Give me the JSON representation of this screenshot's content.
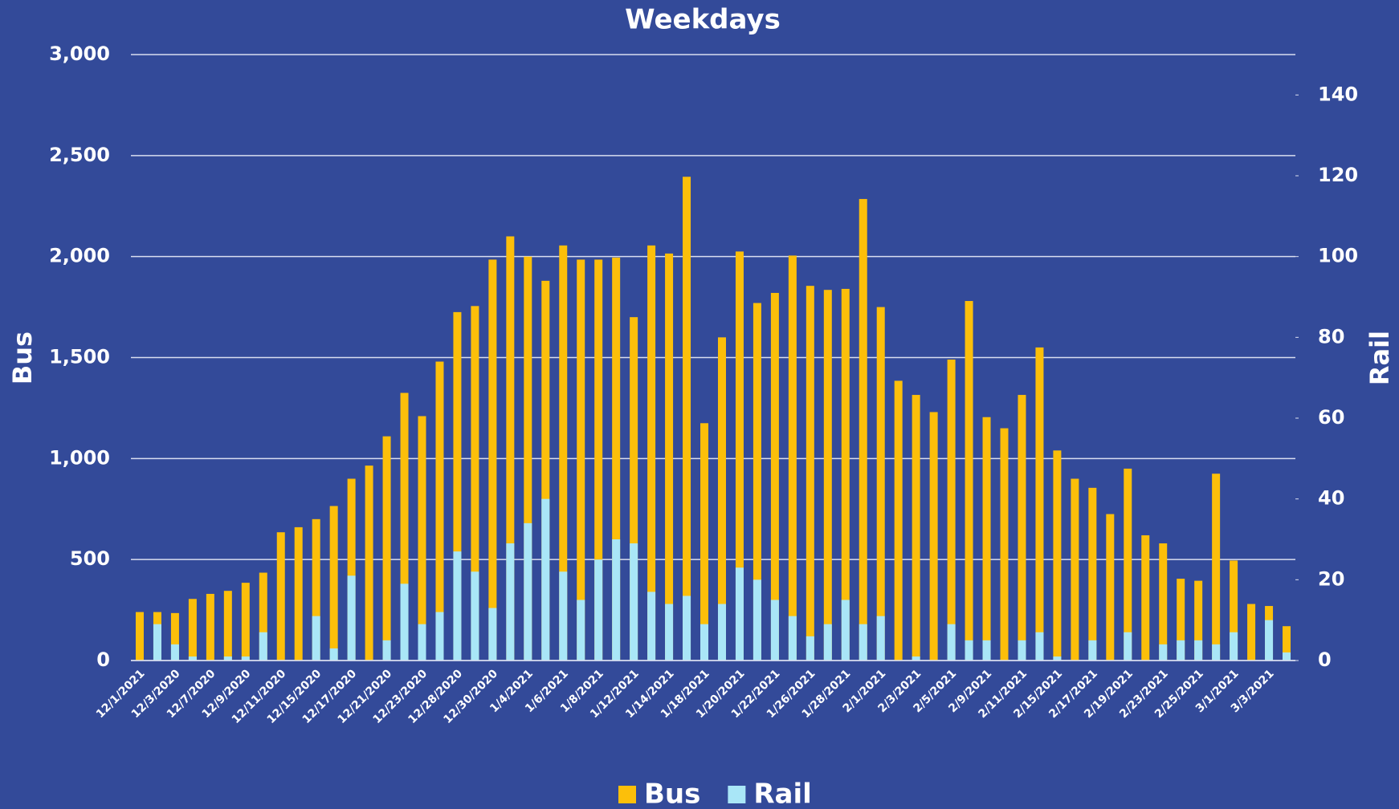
{
  "chart_data": {
    "type": "bar",
    "title": "Weekdays",
    "y_label": "Bus",
    "y2_label": "Rail",
    "categories": [
      "12/1/2021",
      null,
      "12/3/2020",
      null,
      "12/7/2020",
      null,
      "12/9/2020",
      null,
      "12/11/2020",
      null,
      "12/15/2020",
      null,
      "12/17/2020",
      null,
      "12/21/2020",
      null,
      "12/23/2020",
      null,
      "12/28/2020",
      null,
      "12/30/2020",
      null,
      "1/4/2021",
      null,
      "1/6/2021",
      null,
      "1/8/2021",
      null,
      "1/12/2021",
      null,
      "1/14/2021",
      null,
      "1/18/2021",
      null,
      "1/20/2021",
      null,
      "1/22/2021",
      null,
      "1/26/2021",
      null,
      "1/28/2021",
      null,
      "2/1/2021",
      null,
      "2/3/2021",
      null,
      "2/5/2021",
      null,
      "2/9/2021",
      null,
      "2/11/2021",
      null,
      "2/15/2021",
      null,
      "2/17/2021",
      null,
      "2/19/2021",
      null,
      "2/23/2021",
      null,
      "2/25/2021",
      null,
      "3/1/2021",
      null,
      "3/3/2021",
      null
    ],
    "series": [
      {
        "name": "Bus",
        "color": "#fcbf0a",
        "axis": "y",
        "values": [
          240,
          240,
          235,
          305,
          330,
          345,
          385,
          435,
          635,
          660,
          700,
          765,
          900,
          965,
          1110,
          1325,
          1210,
          1480,
          1725,
          1755,
          1985,
          2100,
          2000,
          1880,
          2055,
          1985,
          1985,
          1995,
          1700,
          2055,
          2015,
          2395,
          1175,
          1600,
          2025,
          1770,
          1820,
          2005,
          1855,
          1835,
          1840,
          2285,
          1750,
          1385,
          1315,
          1230,
          1490,
          1780,
          1205,
          1150,
          1315,
          1550,
          1040,
          900,
          855,
          725,
          950,
          620,
          580,
          405,
          395,
          925,
          495,
          280,
          270,
          170
        ]
      },
      {
        "name": "Rail",
        "color": "#a9e6f7",
        "axis": "y2",
        "values": [
          0,
          9,
          4,
          1,
          0,
          1,
          1,
          7,
          0,
          0,
          11,
          3,
          21,
          0,
          5,
          19,
          9,
          12,
          27,
          22,
          13,
          29,
          34,
          40,
          22,
          15,
          25,
          30,
          29,
          17,
          14,
          16,
          9,
          14,
          23,
          20,
          15,
          11,
          6,
          9,
          15,
          9,
          11,
          0,
          1,
          0,
          9,
          5,
          5,
          0,
          5,
          7,
          1,
          0,
          5,
          0,
          7,
          0,
          4,
          5,
          5,
          4,
          7,
          0,
          10,
          2
        ]
      }
    ],
    "ylim": [
      0,
      3000
    ],
    "yticks": [
      0,
      500,
      {
        "value": 1000,
        "label": "1,000"
      },
      {
        "value": 1500,
        "label": "1,500"
      },
      {
        "value": 2000,
        "label": "2,000"
      },
      {
        "value": 2500,
        "label": "2,500"
      },
      {
        "value": 3000,
        "label": "3,000"
      }
    ],
    "y2lim": [
      0,
      150
    ],
    "y2ticks": [
      0,
      20,
      40,
      60,
      80,
      100,
      120,
      140
    ],
    "grid": true,
    "legend": "bottom"
  }
}
